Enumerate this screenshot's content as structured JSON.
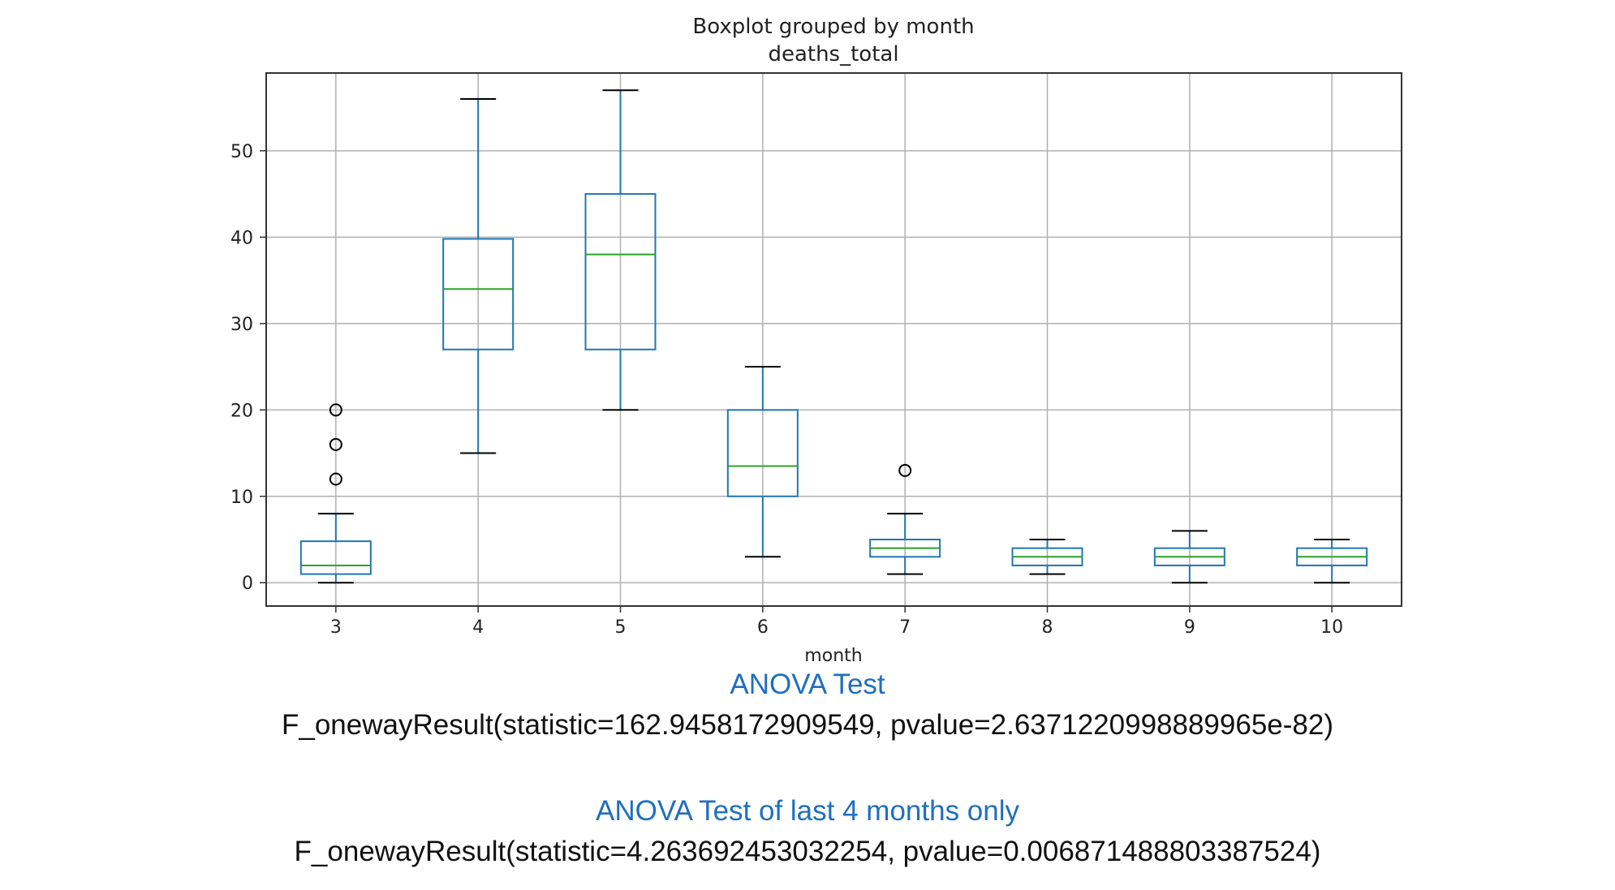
{
  "chart_data": {
    "type": "box",
    "title": "Boxplot grouped by month",
    "subtitle": "deaths_total",
    "xlabel": "month",
    "ylabel": "",
    "ylim": [
      -2.7,
      59
    ],
    "yticks": [
      0,
      10,
      20,
      30,
      40,
      50
    ],
    "grid": true,
    "colors": {
      "box": "#1f77b4",
      "median": "#2ca02c",
      "whisker_cap": "#000000",
      "outlier": "#000000",
      "grid": "#b0b0b0"
    },
    "categories": [
      "3",
      "4",
      "5",
      "6",
      "7",
      "8",
      "9",
      "10"
    ],
    "boxes": [
      {
        "month": "3",
        "whisker_low": 0,
        "q1": 1,
        "median": 2,
        "q3": 4.8,
        "whisker_high": 8,
        "outliers": [
          12,
          16,
          20
        ]
      },
      {
        "month": "4",
        "whisker_low": 15,
        "q1": 27,
        "median": 34,
        "q3": 39.8,
        "whisker_high": 56,
        "outliers": []
      },
      {
        "month": "5",
        "whisker_low": 20,
        "q1": 27,
        "median": 38,
        "q3": 45,
        "whisker_high": 57,
        "outliers": []
      },
      {
        "month": "6",
        "whisker_low": 3,
        "q1": 10,
        "median": 13.5,
        "q3": 20,
        "whisker_high": 25,
        "outliers": []
      },
      {
        "month": "7",
        "whisker_low": 1,
        "q1": 3,
        "median": 4,
        "q3": 5,
        "whisker_high": 8,
        "outliers": [
          13
        ]
      },
      {
        "month": "8",
        "whisker_low": 1,
        "q1": 2,
        "median": 3,
        "q3": 4,
        "whisker_high": 5,
        "outliers": []
      },
      {
        "month": "9",
        "whisker_low": 0,
        "q1": 2,
        "median": 3,
        "q3": 4,
        "whisker_high": 6,
        "outliers": []
      },
      {
        "month": "10",
        "whisker_low": 0,
        "q1": 2,
        "median": 3,
        "q3": 4,
        "whisker_high": 5,
        "outliers": []
      }
    ]
  },
  "stats": {
    "anova_heading": "ANOVA Test",
    "anova_result": "F_onewayResult(statistic=162.9458172909549, pvalue=2.6371220998889965e-82)",
    "anova_last4_heading": "ANOVA Test of last 4 months only",
    "anova_last4_result": "F_onewayResult(statistic=4.263692453032254, pvalue=0.006871488803387524)"
  }
}
